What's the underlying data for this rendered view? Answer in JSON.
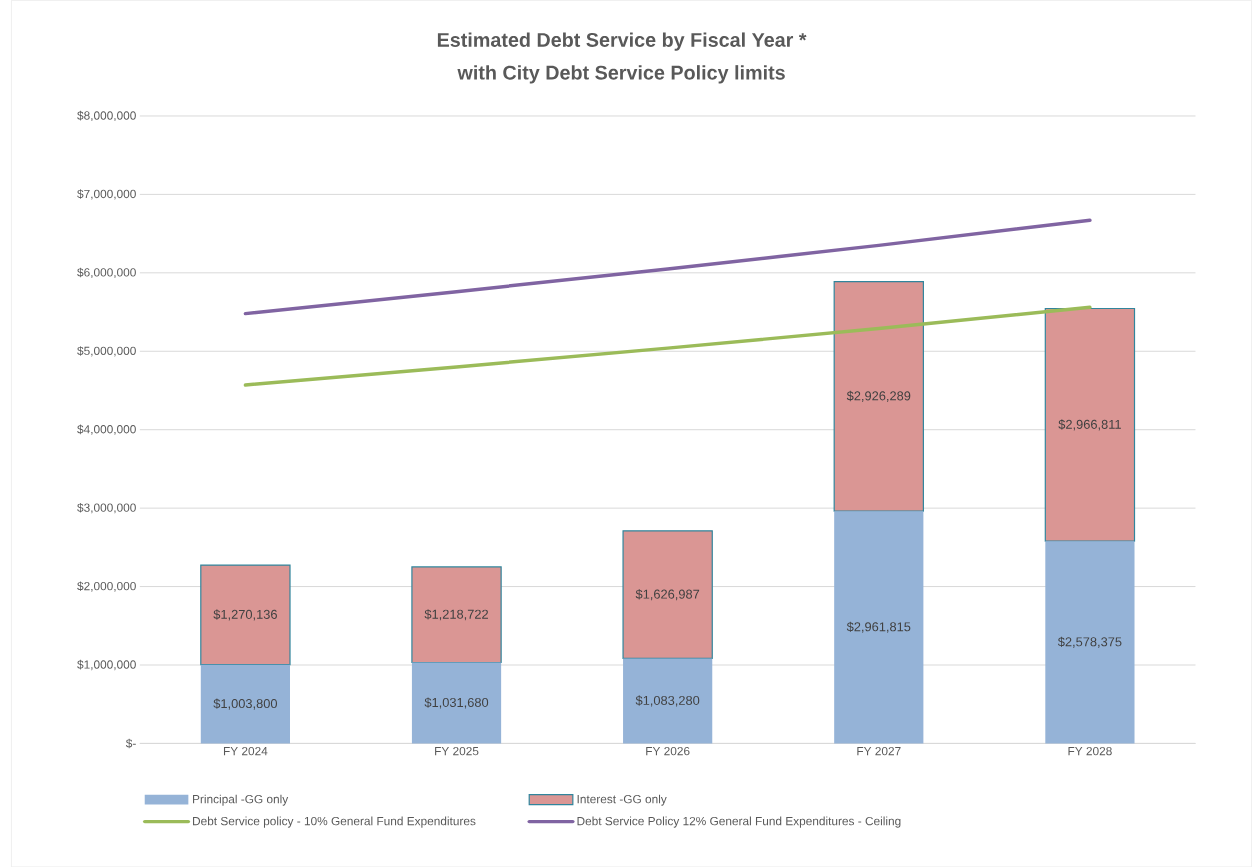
{
  "chart_data": {
    "type": "bar",
    "title": "Estimated Debt Service by Fiscal Year *",
    "subtitle": "with City Debt Service Policy limits",
    "categories": [
      "FY 2024",
      "FY 2025",
      "FY 2026",
      "FY 2027",
      "FY 2028"
    ],
    "stacked": true,
    "grid": "y",
    "legend": "bottom",
    "ylim": [
      0,
      8000000
    ],
    "yticks": [
      {
        "value": 0,
        "label": "$-"
      },
      {
        "value": 1000000,
        "label": "$1,000,000"
      },
      {
        "value": 2000000,
        "label": "$2,000,000"
      },
      {
        "value": 3000000,
        "label": "$3,000,000"
      },
      {
        "value": 4000000,
        "label": "$4,000,000"
      },
      {
        "value": 5000000,
        "label": "$5,000,000"
      },
      {
        "value": 6000000,
        "label": "$6,000,000"
      },
      {
        "value": 7000000,
        "label": "$7,000,000"
      },
      {
        "value": 8000000,
        "label": "$8,000,000"
      }
    ],
    "series": [
      {
        "name": "Principal -GG only",
        "color": "#95b3d7",
        "values": [
          1003800,
          1031680,
          1083280,
          2961815,
          2578375
        ],
        "value_labels": [
          "$1,003,800",
          "$1,031,680",
          "$1,083,280",
          "$2,961,815",
          "$2,578,375"
        ]
      },
      {
        "name": "Interest -GG only",
        "color": "#da9694",
        "values": [
          1270136,
          1218722,
          1626987,
          2926289,
          2966811
        ],
        "value_labels": [
          "$1,270,136",
          "$1,218,722",
          "$1,626,987",
          "$2,926,289",
          "$2,966,811"
        ]
      },
      {
        "name": "Debt Service policy - 10% General Fund Expenditures",
        "type": "line",
        "color": "#9bbb59",
        "values": [
          4570000,
          4800000,
          5040000,
          5290000,
          5560000
        ]
      },
      {
        "name": "Debt Service Policy 12% General Fund Expenditures - Ceiling",
        "type": "line",
        "color": "#8064a2",
        "values": [
          5480000,
          5760000,
          6050000,
          6350000,
          6670000
        ]
      }
    ]
  }
}
